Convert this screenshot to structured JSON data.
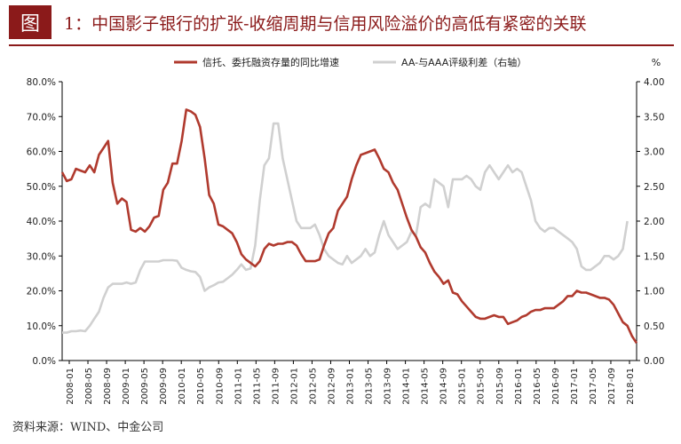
{
  "header": {
    "badge": "图",
    "title": "1：中国影子银行的扩张-收缩周期与信用风险溢价的高低有紧密的关联"
  },
  "source": "资料来源：WIND、中金公司",
  "colors": {
    "series1": "#b03a2e",
    "series2": "#d0d0d0",
    "accent": "#8b1a1a",
    "axis": "#000000"
  },
  "chart_data": {
    "type": "line",
    "right_unit": "%",
    "x_ticks": [
      "2008-01",
      "2008-05",
      "2008-09",
      "2009-01",
      "2009-05",
      "2009-09",
      "2010-01",
      "2010-05",
      "2010-09",
      "2011-01",
      "2011-05",
      "2011-09",
      "2012-01",
      "2012-05",
      "2012-09",
      "2013-01",
      "2013-05",
      "2013-09",
      "2014-01",
      "2014-05",
      "2014-09",
      "2015-01",
      "2015-05",
      "2015-09",
      "2016-01",
      "2016-05",
      "2016-09",
      "2017-01",
      "2017-05",
      "2017-09",
      "2018-01"
    ],
    "y_left": {
      "ticks": [
        "0.0%",
        "10.0%",
        "20.0%",
        "30.0%",
        "40.0%",
        "50.0%",
        "60.0%",
        "70.0%",
        "80.0%"
      ],
      "range": [
        0,
        80
      ]
    },
    "y_right": {
      "ticks": [
        "0.00",
        "0.50",
        "1.00",
        "1.50",
        "2.00",
        "2.50",
        "3.00",
        "3.50",
        "4.00"
      ],
      "range": [
        0,
        4
      ]
    },
    "series": [
      {
        "name": "信托、委托融资存量的同比增速",
        "axis": "left",
        "values": [
          54,
          51.5,
          52,
          55,
          54.5,
          54,
          56,
          54,
          59,
          61,
          63,
          51,
          45,
          46.5,
          45.5,
          37.5,
          37,
          38,
          37,
          38.5,
          41,
          41.5,
          49,
          51,
          56.5,
          56.5,
          63,
          72,
          71.5,
          70.5,
          67,
          58,
          47.5,
          45,
          39,
          38.5,
          37.5,
          36.5,
          34,
          30.5,
          29,
          28,
          27,
          28.5,
          32,
          33.5,
          33,
          33.5,
          33.5,
          34,
          34,
          33,
          30.5,
          28.5,
          28.5,
          28.5,
          29,
          33,
          36.5,
          38,
          43,
          45,
          47,
          52,
          56,
          59,
          59.5,
          60,
          60.5,
          58,
          55,
          54,
          51,
          49,
          45,
          41,
          37.5,
          35.5,
          32.5,
          31,
          28,
          25.5,
          24,
          22,
          23,
          19.5,
          19,
          17,
          15.5,
          14,
          12.5,
          12,
          12,
          12.5,
          13,
          12.5,
          12.5,
          10.5,
          11,
          11.5,
          12.5,
          13,
          14,
          14.5,
          14.5,
          15,
          15,
          15,
          16,
          17,
          18.5,
          18.5,
          20,
          19.5,
          19.5,
          19,
          18.5,
          18,
          18,
          17.5,
          16,
          13.5,
          11,
          10,
          7,
          5
        ]
      },
      {
        "name": "AA-与AAA评级利差（右轴）",
        "axis": "right",
        "values": [
          0.4,
          0.4,
          0.42,
          0.42,
          0.43,
          0.42,
          0.5,
          0.6,
          0.7,
          0.9,
          1.05,
          1.1,
          1.1,
          1.1,
          1.12,
          1.1,
          1.12,
          1.3,
          1.42,
          1.42,
          1.42,
          1.42,
          1.44,
          1.44,
          1.44,
          1.43,
          1.33,
          1.3,
          1.28,
          1.27,
          1.2,
          1.0,
          1.05,
          1.08,
          1.12,
          1.13,
          1.18,
          1.23,
          1.3,
          1.38,
          1.3,
          1.32,
          1.65,
          2.3,
          2.8,
          2.9,
          3.4,
          3.4,
          2.9,
          2.6,
          2.3,
          2.0,
          1.9,
          1.9,
          1.9,
          1.95,
          1.8,
          1.6,
          1.5,
          1.45,
          1.4,
          1.38,
          1.5,
          1.4,
          1.45,
          1.5,
          1.6,
          1.5,
          1.55,
          1.8,
          2.0,
          1.8,
          1.7,
          1.6,
          1.65,
          1.7,
          1.85,
          1.8,
          2.2,
          2.25,
          2.2,
          2.6,
          2.55,
          2.5,
          2.2,
          2.6,
          2.6,
          2.6,
          2.65,
          2.6,
          2.5,
          2.45,
          2.7,
          2.8,
          2.7,
          2.6,
          2.7,
          2.8,
          2.7,
          2.75,
          2.7,
          2.5,
          2.3,
          2.0,
          1.9,
          1.85,
          1.9,
          1.9,
          1.85,
          1.8,
          1.75,
          1.7,
          1.6,
          1.35,
          1.3,
          1.3,
          1.35,
          1.4,
          1.5,
          1.5,
          1.45,
          1.5,
          1.6,
          2.0
        ]
      }
    ]
  }
}
